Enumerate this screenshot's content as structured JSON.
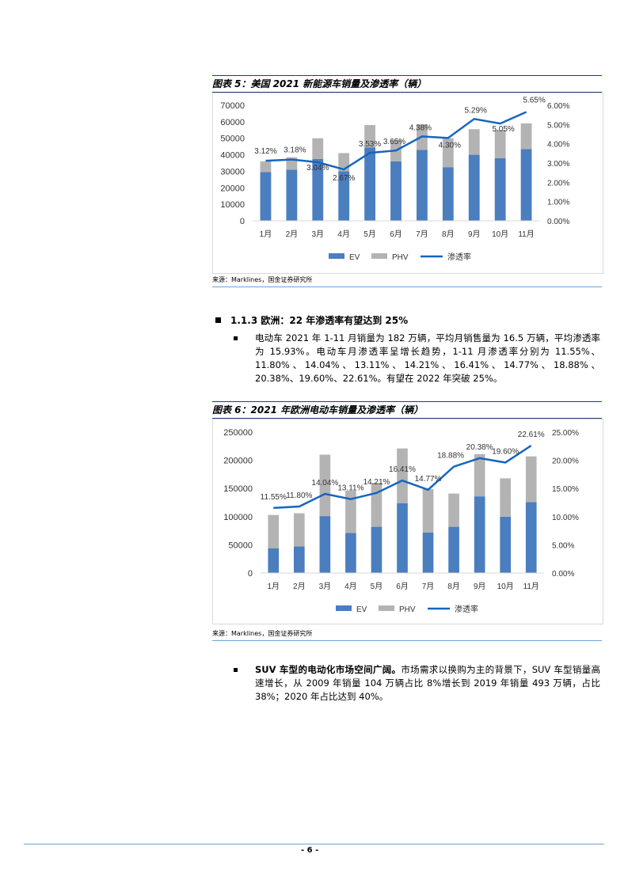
{
  "fig5": {
    "title": "图表 5：美国 2021 新能源车销量及渗透率（辆）",
    "source": "来源：Marklines，国金证券研究所"
  },
  "section": {
    "heading": "1.1.3 欧洲：22 年渗透率有望达到 25%"
  },
  "bullet1": "电动车 2021 年 1-11 月销量为 182 万辆，平均月销售量为 16.5 万辆，平均渗透率为 15.93%。电动车月渗透率呈增长趋势，1-11 月渗透率分别为 11.55%、11.80%、14.04%、13.11%、14.21%、16.41%、14.77%、18.88%、20.38%、19.60%、22.61%。有望在 2022 年突破 25%。",
  "fig6": {
    "title": "图表 6：2021 年欧洲电动车销量及渗透率（辆）",
    "source": "来源：Marklines，国金证券研究所"
  },
  "bullet2": {
    "bold": "SUV 车型的电动化市场空间广阔。",
    "text": "市场需求以换购为主的背景下，SUV 车型销量高速增长，从 2009 年销量 104 万辆占比 8%增长到 2019 年销量 493 万辆，占比 38%；2020 年占比达到 40%。"
  },
  "footer": {
    "page": "- 6 -"
  },
  "colors": {
    "ev": "#4a7ebf",
    "phv": "#b3b3b3",
    "rate": "#1565c0",
    "rule": "#1a3f78"
  },
  "chart_data": [
    {
      "type": "bar",
      "stacked": true,
      "categories": [
        "1月",
        "2月",
        "3月",
        "4月",
        "5月",
        "6月",
        "7月",
        "8月",
        "9月",
        "10月",
        "11月"
      ],
      "series": [
        {
          "name": "EV",
          "values": [
            29500,
            31000,
            37500,
            30000,
            44500,
            36000,
            43000,
            32500,
            40000,
            38000,
            43500
          ]
        },
        {
          "name": "PHV",
          "values": [
            6500,
            7500,
            12500,
            11000,
            13500,
            13000,
            15500,
            17500,
            15500,
            17000,
            15500
          ]
        }
      ],
      "line": {
        "name": "渗透率",
        "values": [
          3.12,
          3.18,
          3.04,
          2.67,
          3.53,
          3.65,
          4.38,
          4.3,
          5.29,
          5.05,
          5.65
        ],
        "labels": [
          "3.12%",
          "3.18%",
          "3.04%",
          "2.67%",
          "3.53%",
          "3.65%",
          "4.38%",
          "4.30%",
          "5.29%",
          "5.05%",
          "5.65%"
        ]
      },
      "ylim": [
        0,
        70000
      ],
      "yticks": [
        "0",
        "10000",
        "20000",
        "30000",
        "40000",
        "50000",
        "60000",
        "70000"
      ],
      "y2lim": [
        0,
        6
      ],
      "y2ticks": [
        "0.00%",
        "1.00%",
        "2.00%",
        "3.00%",
        "4.00%",
        "5.00%",
        "6.00%"
      ],
      "legend": "bottom"
    },
    {
      "type": "bar",
      "stacked": true,
      "categories": [
        "1月",
        "2月",
        "3月",
        "4月",
        "5月",
        "6月",
        "7月",
        "8月",
        "9月",
        "10月",
        "11月"
      ],
      "series": [
        {
          "name": "EV",
          "values": [
            44000,
            47000,
            101000,
            71000,
            82000,
            124000,
            72000,
            82000,
            136000,
            100000,
            126000
          ]
        },
        {
          "name": "PHV",
          "values": [
            59000,
            59000,
            109000,
            75000,
            78000,
            97000,
            77000,
            59000,
            75000,
            68000,
            81000
          ]
        }
      ],
      "line": {
        "name": "渗透率",
        "values": [
          11.55,
          11.8,
          14.04,
          13.11,
          14.21,
          16.41,
          14.77,
          18.88,
          20.38,
          19.6,
          22.61
        ],
        "labels": [
          "11.55%",
          "11.80%",
          "14.04%",
          "13.11%",
          "14.21%",
          "16.41%",
          "14.77%",
          "18.88%",
          "20.38%",
          "19.60%",
          "22.61%"
        ]
      },
      "ylim": [
        0,
        250000
      ],
      "yticks": [
        "0",
        "50000",
        "100000",
        "150000",
        "200000",
        "250000"
      ],
      "y2lim": [
        0,
        25
      ],
      "y2ticks": [
        "0.00%",
        "5.00%",
        "10.00%",
        "15.00%",
        "20.00%",
        "25.00%"
      ],
      "legend": "bottom"
    }
  ]
}
